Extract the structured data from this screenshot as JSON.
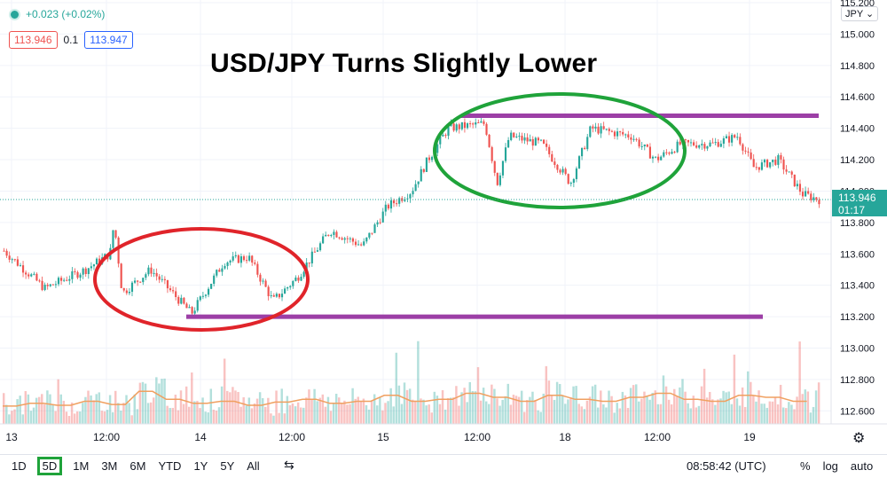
{
  "header": {
    "change": "+0.023 (+0.02%)",
    "bid": "113.946",
    "spread": "0.1",
    "ask": "113.947",
    "currency": "JPY"
  },
  "title": "USD/JPY Turns Slightly Lower",
  "current_price": {
    "price": "113.946",
    "countdown": "01:17"
  },
  "colors": {
    "up": "#26a69a",
    "down": "#ef5350",
    "purple": "#9c3fa6",
    "green_ellipse": "#1fa33a",
    "red_ellipse": "#e0242a",
    "volume_ma": "#f0a060"
  },
  "footer": {
    "ranges": [
      "1D",
      "5D",
      "1M",
      "3M",
      "6M",
      "YTD",
      "1Y",
      "5Y",
      "All"
    ],
    "active_range": "5D",
    "calendar_icon": "calendar-range-icon",
    "time": "08:58:42 (UTC)",
    "percent": "%",
    "log": "log",
    "auto": "auto"
  },
  "settings_icon": "gear-icon",
  "chart_data": {
    "type": "candlestick",
    "y_axis": {
      "min": 112.5,
      "max": 115.2,
      "ticks": [
        "115.200",
        "115.000",
        "114.800",
        "114.600",
        "114.400",
        "114.200",
        "114.000",
        "113.800",
        "113.600",
        "113.400",
        "113.200",
        "113.000",
        "112.800",
        "112.600"
      ]
    },
    "x_ticks": [
      "13",
      "12:00",
      "14",
      "12:00",
      "15",
      "12:00",
      "18",
      "12:00",
      "19"
    ],
    "price_path": [
      [
        0,
        113.62
      ],
      [
        0.05,
        113.38
      ],
      [
        0.1,
        113.5
      ],
      [
        0.13,
        113.6
      ],
      [
        0.135,
        113.8
      ],
      [
        0.145,
        113.35
      ],
      [
        0.18,
        113.5
      ],
      [
        0.23,
        113.22
      ],
      [
        0.27,
        113.55
      ],
      [
        0.3,
        113.58
      ],
      [
        0.33,
        113.3
      ],
      [
        0.36,
        113.45
      ],
      [
        0.4,
        113.75
      ],
      [
        0.44,
        113.65
      ],
      [
        0.47,
        113.9
      ],
      [
        0.5,
        114.0
      ],
      [
        0.52,
        114.2
      ],
      [
        0.545,
        114.4
      ],
      [
        0.59,
        114.43
      ],
      [
        0.605,
        114.05
      ],
      [
        0.62,
        114.35
      ],
      [
        0.66,
        114.3
      ],
      [
        0.695,
        114.05
      ],
      [
        0.72,
        114.4
      ],
      [
        0.77,
        114.35
      ],
      [
        0.8,
        114.2
      ],
      [
        0.83,
        114.3
      ],
      [
        0.87,
        114.3
      ],
      [
        0.9,
        114.35
      ],
      [
        0.92,
        114.15
      ],
      [
        0.95,
        114.2
      ],
      [
        0.98,
        113.98
      ],
      [
        1.0,
        113.946
      ]
    ],
    "resistance": 114.48,
    "support": 113.2,
    "volume_profile": [
      0.18,
      0.25,
      0.2,
      0.3,
      0.22,
      0.55,
      0.35,
      0.25,
      0.3,
      0.2,
      0.28,
      0.35,
      0.25,
      0.3,
      0.45,
      0.3,
      0.35,
      0.5,
      0.4,
      0.3,
      0.45,
      0.35,
      0.3,
      0.4,
      0.5,
      0.35,
      0.3,
      0.45,
      0.4,
      0.3
    ]
  }
}
